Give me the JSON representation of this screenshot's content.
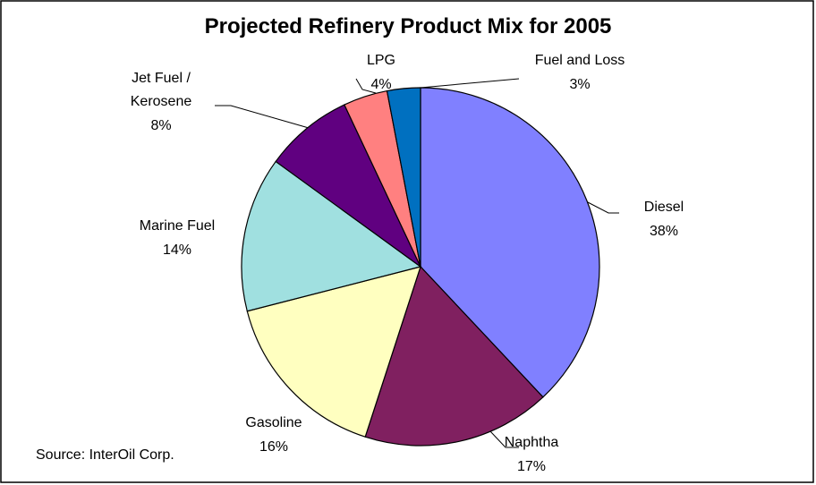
{
  "chart_data": {
    "type": "pie",
    "title": "Projected Refinery Product Mix for 2005",
    "source": "Source: InterOil Corp.",
    "categories": [
      "Diesel",
      "Naphtha",
      "Gasoline",
      "Marine Fuel",
      "Jet Fuel / Kerosene",
      "LPG",
      "Fuel and Loss"
    ],
    "values": [
      38,
      17,
      16,
      14,
      8,
      4,
      3
    ],
    "value_labels": [
      "38%",
      "17%",
      "16%",
      "14%",
      "8%",
      "4%",
      "3%"
    ],
    "colors": [
      "#8080ff",
      "#802060",
      "#ffffc0",
      "#a0e0e0",
      "#600080",
      "#ff8080",
      "#0070c0"
    ]
  }
}
